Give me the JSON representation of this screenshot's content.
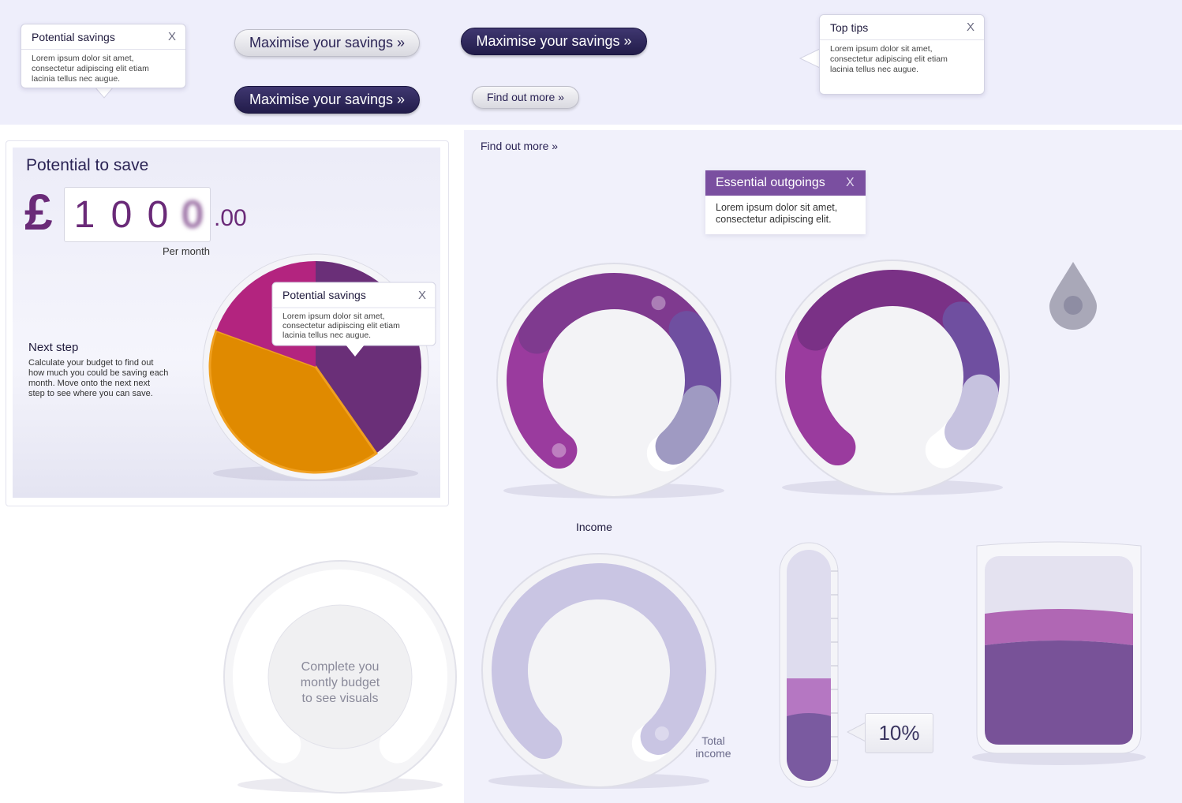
{
  "top_bar": {
    "tooltip": {
      "title": "Potential savings",
      "close": "X",
      "body": [
        "Lorem ipsum dolor sit amet,",
        "consectetur adipiscing elit etiam",
        "lacinia tellus nec augue."
      ]
    },
    "buttons": [
      "Maximise your savings »",
      "Maximise your savings »",
      "Maximise your savings »",
      "Find out more »"
    ],
    "top_tips": {
      "title": "Top tips",
      "close": "X",
      "body": [
        "Lorem ipsum dolor sit amet,",
        "consectetur adipiscing elit etiam",
        "lacinia tellus nec augue."
      ]
    }
  },
  "savings_panel": {
    "title": "Potential to save",
    "currency": "£",
    "digits": [
      "1",
      "0",
      "0",
      "0"
    ],
    "decimals": ".00",
    "period": "Per month",
    "next_step_title": "Next step",
    "next_step_body": [
      "Calculate your budget to find out",
      "how much you could be saving each",
      "month. Move onto the next next",
      "step to see where you can save."
    ],
    "pie_tooltip": {
      "title": "Potential savings",
      "close": "X",
      "body": [
        "Lorem ipsum dolor sit amet,",
        "consectetur adipiscing elit etiam",
        "lacinia tellus nec augue."
      ]
    }
  },
  "widgets": {
    "link": "Find out more »",
    "essential_tooltip": {
      "title": "Essential outgoings",
      "close": "X",
      "body": [
        "Lorem ipsum dolor sit amet,",
        "consectetur adipiscing elit."
      ]
    },
    "income_label": "Income",
    "empty_gauge_text": [
      "Complete you",
      "montly budget",
      "to see visuals"
    ],
    "total_income_label": [
      "Total",
      "income"
    ],
    "percent_label": "10%"
  }
}
